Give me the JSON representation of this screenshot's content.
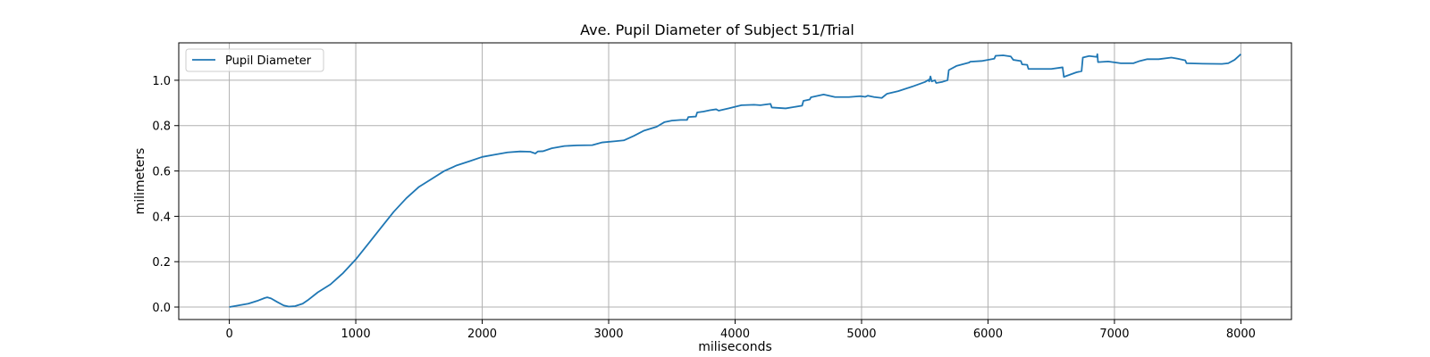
{
  "chart_data": {
    "type": "line",
    "title": "Ave. Pupil Diameter of Subject 51/Trial",
    "xlabel": "miliseconds",
    "ylabel": "milimeters",
    "xlim": [
      -400,
      8400
    ],
    "ylim": [
      -0.055,
      1.165
    ],
    "xticks": [
      0,
      1000,
      2000,
      3000,
      4000,
      5000,
      6000,
      7000,
      8000
    ],
    "yticks": [
      0.0,
      0.2,
      0.4,
      0.6,
      0.8,
      1.0
    ],
    "xtick_labels": [
      "0",
      "1000",
      "2000",
      "3000",
      "4000",
      "5000",
      "6000",
      "7000",
      "8000"
    ],
    "ytick_labels": [
      "0.0",
      "0.2",
      "0.4",
      "0.6",
      "0.8",
      "1.0"
    ],
    "grid": true,
    "legend_position": "upper-left",
    "series": [
      {
        "name": "Pupil Diameter",
        "color": "#1f77b4",
        "points": [
          [
            0,
            0.0
          ],
          [
            80,
            0.008
          ],
          [
            150,
            0.015
          ],
          [
            220,
            0.027
          ],
          [
            280,
            0.04
          ],
          [
            300,
            0.043
          ],
          [
            330,
            0.038
          ],
          [
            380,
            0.022
          ],
          [
            430,
            0.007
          ],
          [
            470,
            0.002
          ],
          [
            520,
            0.004
          ],
          [
            580,
            0.015
          ],
          [
            620,
            0.03
          ],
          [
            700,
            0.065
          ],
          [
            800,
            0.1
          ],
          [
            900,
            0.15
          ],
          [
            1000,
            0.21
          ],
          [
            1100,
            0.28
          ],
          [
            1200,
            0.35
          ],
          [
            1300,
            0.42
          ],
          [
            1400,
            0.48
          ],
          [
            1500,
            0.53
          ],
          [
            1600,
            0.565
          ],
          [
            1700,
            0.6
          ],
          [
            1800,
            0.625
          ],
          [
            1900,
            0.643
          ],
          [
            2000,
            0.662
          ],
          [
            2100,
            0.672
          ],
          [
            2200,
            0.682
          ],
          [
            2300,
            0.686
          ],
          [
            2380,
            0.685
          ],
          [
            2420,
            0.677
          ],
          [
            2440,
            0.686
          ],
          [
            2480,
            0.687
          ],
          [
            2550,
            0.7
          ],
          [
            2650,
            0.71
          ],
          [
            2750,
            0.713
          ],
          [
            2870,
            0.714
          ],
          [
            2950,
            0.726
          ],
          [
            3050,
            0.731
          ],
          [
            3120,
            0.735
          ],
          [
            3200,
            0.755
          ],
          [
            3280,
            0.778
          ],
          [
            3380,
            0.795
          ],
          [
            3440,
            0.815
          ],
          [
            3500,
            0.822
          ],
          [
            3570,
            0.825
          ],
          [
            3620,
            0.825
          ],
          [
            3630,
            0.838
          ],
          [
            3690,
            0.84
          ],
          [
            3700,
            0.858
          ],
          [
            3750,
            0.862
          ],
          [
            3800,
            0.868
          ],
          [
            3850,
            0.872
          ],
          [
            3870,
            0.866
          ],
          [
            3950,
            0.876
          ],
          [
            4050,
            0.89
          ],
          [
            4150,
            0.892
          ],
          [
            4200,
            0.89
          ],
          [
            4280,
            0.896
          ],
          [
            4290,
            0.88
          ],
          [
            4400,
            0.876
          ],
          [
            4530,
            0.888
          ],
          [
            4540,
            0.909
          ],
          [
            4590,
            0.915
          ],
          [
            4600,
            0.925
          ],
          [
            4700,
            0.937
          ],
          [
            4790,
            0.926
          ],
          [
            4900,
            0.926
          ],
          [
            4990,
            0.93
          ],
          [
            5030,
            0.927
          ],
          [
            5050,
            0.932
          ],
          [
            5100,
            0.926
          ],
          [
            5160,
            0.922
          ],
          [
            5200,
            0.94
          ],
          [
            5290,
            0.952
          ],
          [
            5400,
            0.972
          ],
          [
            5500,
            0.992
          ],
          [
            5530,
            1.002
          ],
          [
            5535,
            0.995
          ],
          [
            5545,
            1.017
          ],
          [
            5555,
            0.995
          ],
          [
            5580,
            1.0
          ],
          [
            5590,
            0.988
          ],
          [
            5640,
            0.993
          ],
          [
            5680,
            1.0
          ],
          [
            5690,
            1.045
          ],
          [
            5750,
            1.063
          ],
          [
            5850,
            1.078
          ],
          [
            5860,
            1.082
          ],
          [
            5950,
            1.085
          ],
          [
            6050,
            1.095
          ],
          [
            6060,
            1.108
          ],
          [
            6120,
            1.11
          ],
          [
            6180,
            1.105
          ],
          [
            6200,
            1.09
          ],
          [
            6260,
            1.085
          ],
          [
            6270,
            1.07
          ],
          [
            6310,
            1.068
          ],
          [
            6320,
            1.05
          ],
          [
            6500,
            1.05
          ],
          [
            6590,
            1.057
          ],
          [
            6600,
            1.015
          ],
          [
            6700,
            1.035
          ],
          [
            6740,
            1.04
          ],
          [
            6750,
            1.1
          ],
          [
            6800,
            1.107
          ],
          [
            6860,
            1.103
          ],
          [
            6865,
            1.115
          ],
          [
            6870,
            1.08
          ],
          [
            6950,
            1.083
          ],
          [
            7050,
            1.075
          ],
          [
            7150,
            1.075
          ],
          [
            7200,
            1.085
          ],
          [
            7260,
            1.093
          ],
          [
            7350,
            1.093
          ],
          [
            7450,
            1.1
          ],
          [
            7500,
            1.095
          ],
          [
            7560,
            1.088
          ],
          [
            7570,
            1.075
          ],
          [
            7700,
            1.073
          ],
          [
            7850,
            1.072
          ],
          [
            7900,
            1.075
          ],
          [
            7950,
            1.09
          ],
          [
            8000,
            1.115
          ]
        ]
      }
    ]
  }
}
